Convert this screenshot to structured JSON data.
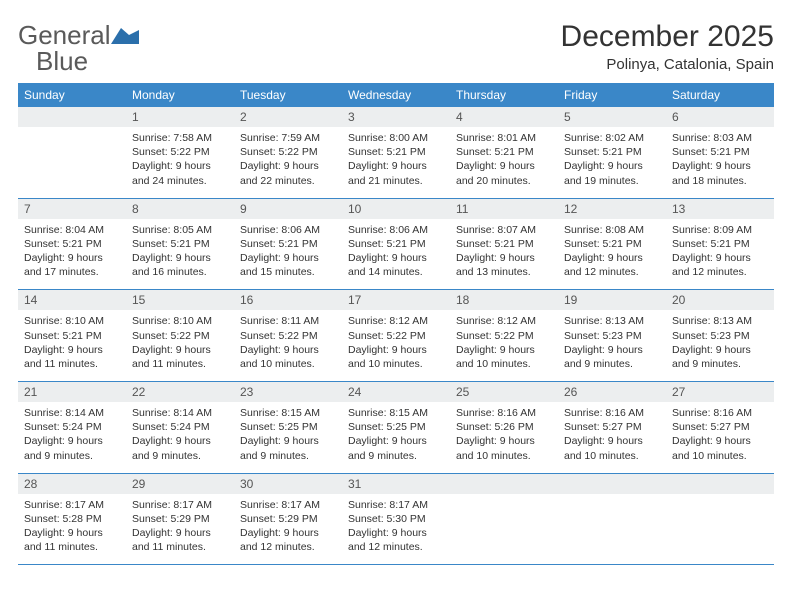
{
  "brand": {
    "text1": "General",
    "text2": "Blue",
    "logo_color": "#2b6fab"
  },
  "title": "December 2025",
  "location": "Polinya, Catalonia, Spain",
  "header_bg": "#3a87c8",
  "header_fg": "#ffffff",
  "daynum_bg": "#eceeef",
  "border_color": "#3a87c8",
  "day_names": [
    "Sunday",
    "Monday",
    "Tuesday",
    "Wednesday",
    "Thursday",
    "Friday",
    "Saturday"
  ],
  "weeks": [
    [
      {
        "n": "",
        "sr": "",
        "ss": "",
        "dl": ""
      },
      {
        "n": "1",
        "sr": "7:58 AM",
        "ss": "5:22 PM",
        "dl": "9 hours and 24 minutes."
      },
      {
        "n": "2",
        "sr": "7:59 AM",
        "ss": "5:22 PM",
        "dl": "9 hours and 22 minutes."
      },
      {
        "n": "3",
        "sr": "8:00 AM",
        "ss": "5:21 PM",
        "dl": "9 hours and 21 minutes."
      },
      {
        "n": "4",
        "sr": "8:01 AM",
        "ss": "5:21 PM",
        "dl": "9 hours and 20 minutes."
      },
      {
        "n": "5",
        "sr": "8:02 AM",
        "ss": "5:21 PM",
        "dl": "9 hours and 19 minutes."
      },
      {
        "n": "6",
        "sr": "8:03 AM",
        "ss": "5:21 PM",
        "dl": "9 hours and 18 minutes."
      }
    ],
    [
      {
        "n": "7",
        "sr": "8:04 AM",
        "ss": "5:21 PM",
        "dl": "9 hours and 17 minutes."
      },
      {
        "n": "8",
        "sr": "8:05 AM",
        "ss": "5:21 PM",
        "dl": "9 hours and 16 minutes."
      },
      {
        "n": "9",
        "sr": "8:06 AM",
        "ss": "5:21 PM",
        "dl": "9 hours and 15 minutes."
      },
      {
        "n": "10",
        "sr": "8:06 AM",
        "ss": "5:21 PM",
        "dl": "9 hours and 14 minutes."
      },
      {
        "n": "11",
        "sr": "8:07 AM",
        "ss": "5:21 PM",
        "dl": "9 hours and 13 minutes."
      },
      {
        "n": "12",
        "sr": "8:08 AM",
        "ss": "5:21 PM",
        "dl": "9 hours and 12 minutes."
      },
      {
        "n": "13",
        "sr": "8:09 AM",
        "ss": "5:21 PM",
        "dl": "9 hours and 12 minutes."
      }
    ],
    [
      {
        "n": "14",
        "sr": "8:10 AM",
        "ss": "5:21 PM",
        "dl": "9 hours and 11 minutes."
      },
      {
        "n": "15",
        "sr": "8:10 AM",
        "ss": "5:22 PM",
        "dl": "9 hours and 11 minutes."
      },
      {
        "n": "16",
        "sr": "8:11 AM",
        "ss": "5:22 PM",
        "dl": "9 hours and 10 minutes."
      },
      {
        "n": "17",
        "sr": "8:12 AM",
        "ss": "5:22 PM",
        "dl": "9 hours and 10 minutes."
      },
      {
        "n": "18",
        "sr": "8:12 AM",
        "ss": "5:22 PM",
        "dl": "9 hours and 10 minutes."
      },
      {
        "n": "19",
        "sr": "8:13 AM",
        "ss": "5:23 PM",
        "dl": "9 hours and 9 minutes."
      },
      {
        "n": "20",
        "sr": "8:13 AM",
        "ss": "5:23 PM",
        "dl": "9 hours and 9 minutes."
      }
    ],
    [
      {
        "n": "21",
        "sr": "8:14 AM",
        "ss": "5:24 PM",
        "dl": "9 hours and 9 minutes."
      },
      {
        "n": "22",
        "sr": "8:14 AM",
        "ss": "5:24 PM",
        "dl": "9 hours and 9 minutes."
      },
      {
        "n": "23",
        "sr": "8:15 AM",
        "ss": "5:25 PM",
        "dl": "9 hours and 9 minutes."
      },
      {
        "n": "24",
        "sr": "8:15 AM",
        "ss": "5:25 PM",
        "dl": "9 hours and 9 minutes."
      },
      {
        "n": "25",
        "sr": "8:16 AM",
        "ss": "5:26 PM",
        "dl": "9 hours and 10 minutes."
      },
      {
        "n": "26",
        "sr": "8:16 AM",
        "ss": "5:27 PM",
        "dl": "9 hours and 10 minutes."
      },
      {
        "n": "27",
        "sr": "8:16 AM",
        "ss": "5:27 PM",
        "dl": "9 hours and 10 minutes."
      }
    ],
    [
      {
        "n": "28",
        "sr": "8:17 AM",
        "ss": "5:28 PM",
        "dl": "9 hours and 11 minutes."
      },
      {
        "n": "29",
        "sr": "8:17 AM",
        "ss": "5:29 PM",
        "dl": "9 hours and 11 minutes."
      },
      {
        "n": "30",
        "sr": "8:17 AM",
        "ss": "5:29 PM",
        "dl": "9 hours and 12 minutes."
      },
      {
        "n": "31",
        "sr": "8:17 AM",
        "ss": "5:30 PM",
        "dl": "9 hours and 12 minutes."
      },
      {
        "n": "",
        "sr": "",
        "ss": "",
        "dl": ""
      },
      {
        "n": "",
        "sr": "",
        "ss": "",
        "dl": ""
      },
      {
        "n": "",
        "sr": "",
        "ss": "",
        "dl": ""
      }
    ]
  ],
  "labels": {
    "sunrise": "Sunrise:",
    "sunset": "Sunset:",
    "daylight": "Daylight:"
  }
}
